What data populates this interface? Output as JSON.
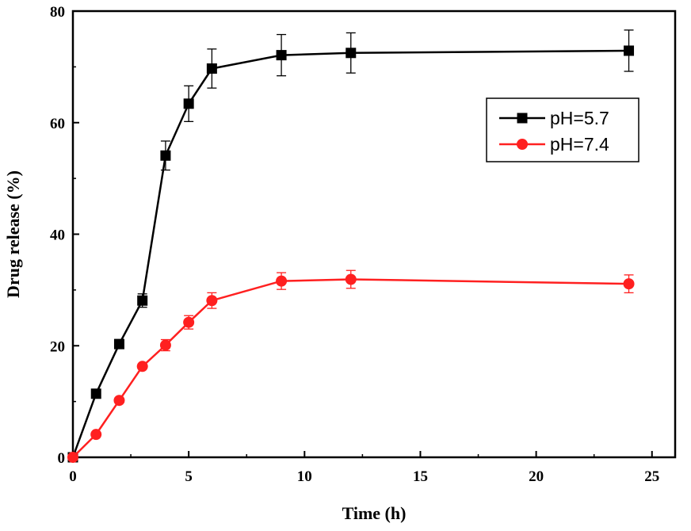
{
  "chart_data": {
    "type": "line",
    "title": "",
    "xlabel": "Time (h)",
    "ylabel": "Drug release (%)",
    "xlim": [
      0,
      26
    ],
    "ylim": [
      0,
      80
    ],
    "xticks": [
      0,
      5,
      10,
      15,
      20,
      25
    ],
    "yticks": [
      0,
      20,
      40,
      60,
      80
    ],
    "grid": false,
    "legend_position": "right, upper-middle",
    "series": [
      {
        "name": "pH=5.7",
        "color": "#000000",
        "marker": "square",
        "x": [
          0,
          1,
          2,
          3,
          4,
          5,
          6,
          9,
          12,
          24
        ],
        "y": [
          0,
          11.4,
          20.3,
          28.1,
          54.1,
          63.4,
          69.7,
          72.1,
          72.5,
          72.9
        ],
        "error": [
          0,
          0,
          0.8,
          1.2,
          2.6,
          3.2,
          3.5,
          3.7,
          3.6,
          3.7
        ]
      },
      {
        "name": "pH=7.4",
        "color": "#ff2020",
        "marker": "circle",
        "x": [
          0,
          1,
          2,
          3,
          4,
          5,
          6,
          9,
          12,
          24
        ],
        "y": [
          0,
          4.1,
          10.2,
          16.3,
          20.1,
          24.2,
          28.1,
          31.6,
          31.9,
          31.1
        ],
        "error": [
          0,
          0,
          0,
          0,
          1.0,
          1.2,
          1.4,
          1.5,
          1.6,
          1.6
        ]
      }
    ]
  }
}
